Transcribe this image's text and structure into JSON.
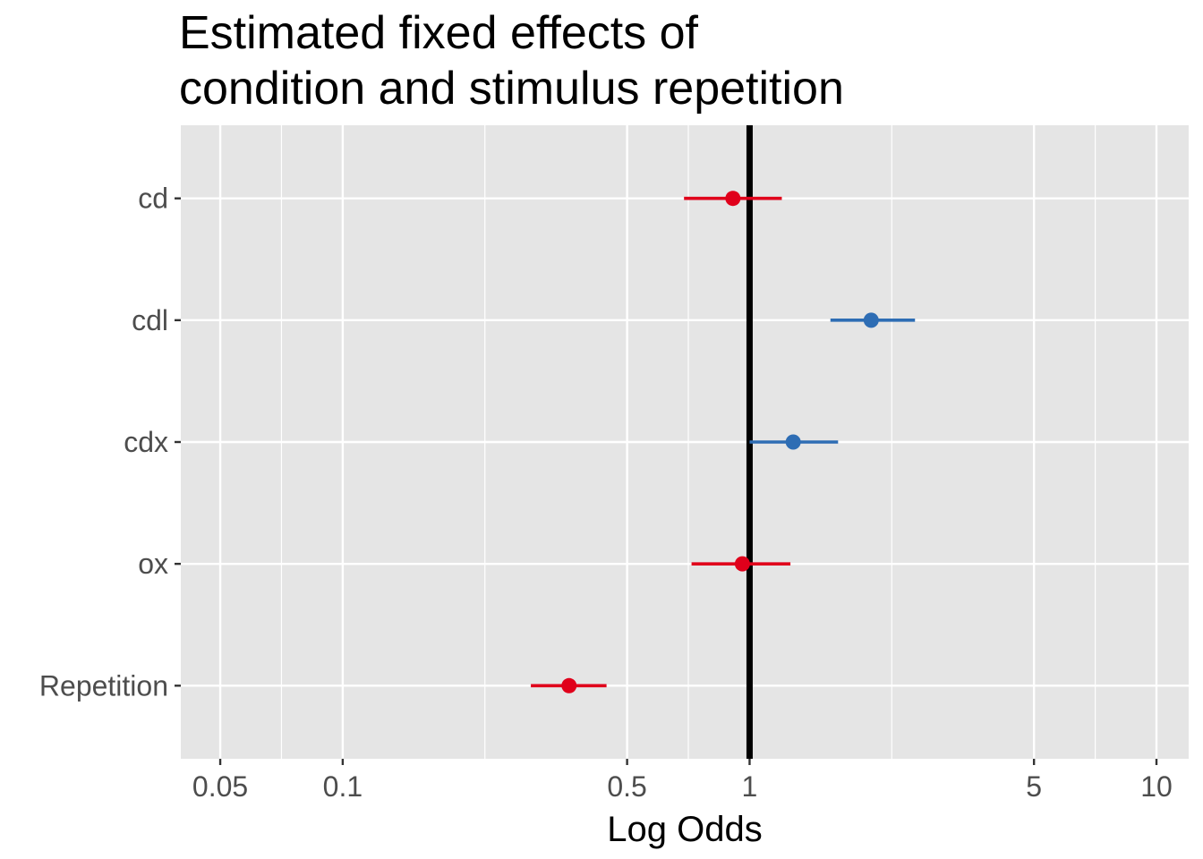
{
  "chart_data": {
    "type": "scatter",
    "title_line1": "Estimated fixed effects of",
    "title_line2": "condition and stimulus repetition",
    "xlabel": "Log Odds",
    "ylabel": "",
    "x_scale": "log10",
    "xlim": [
      0.04,
      12
    ],
    "x_ticks": [
      {
        "value": 0.05,
        "label": "0.05"
      },
      {
        "value": 0.1,
        "label": "0.1"
      },
      {
        "value": 0.5,
        "label": "0.5"
      },
      {
        "value": 1,
        "label": "1"
      },
      {
        "value": 5,
        "label": "5"
      },
      {
        "value": 10,
        "label": "10"
      }
    ],
    "x_minor_gridlines": [
      0.0707,
      0.2236,
      0.7071,
      2.236,
      7.071
    ],
    "reference_line": 1,
    "grid": true,
    "categories": [
      "cd",
      "cdl",
      "cdx",
      "ox",
      "Repetition"
    ],
    "points": [
      {
        "term": "cd",
        "estimate": 0.91,
        "lower": 0.69,
        "upper": 1.2,
        "color": "#E0001B"
      },
      {
        "term": "cdl",
        "estimate": 1.99,
        "lower": 1.58,
        "upper": 2.55,
        "color": "#2E6DB4"
      },
      {
        "term": "cdx",
        "estimate": 1.28,
        "lower": 1.0,
        "upper": 1.65,
        "color": "#2E6DB4"
      },
      {
        "term": "ox",
        "estimate": 0.96,
        "lower": 0.72,
        "upper": 1.26,
        "color": "#E0001B"
      },
      {
        "term": "Repetition",
        "estimate": 0.36,
        "lower": 0.29,
        "upper": 0.445,
        "color": "#E0001B"
      }
    ],
    "colors": {
      "panel_background": "#E5E5E5",
      "grid": "#FFFFFF",
      "reference_line": "#000000",
      "positive": "#2E6DB4",
      "negative": "#E0001B"
    }
  }
}
